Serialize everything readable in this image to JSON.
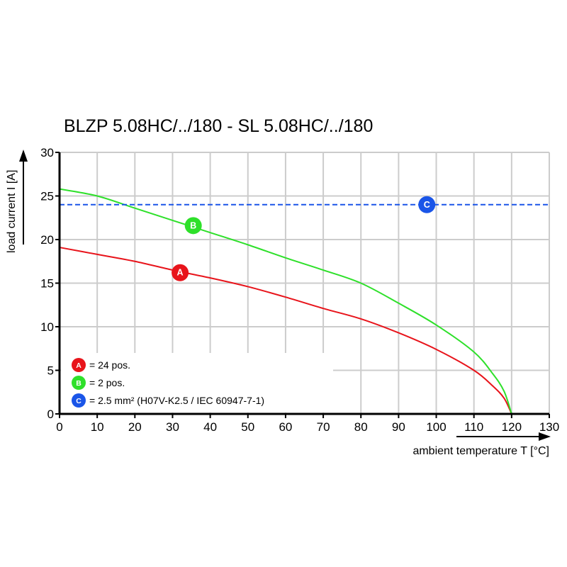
{
  "chart_data": {
    "type": "line",
    "title": "BLZP 5.08HC/../180 - SL 5.08HC/../180",
    "xlabel": "ambient temperature T [°C]",
    "ylabel": "load current I [A]",
    "xlim": [
      0,
      130
    ],
    "ylim": [
      0,
      30
    ],
    "xticks": [
      0,
      10,
      20,
      30,
      40,
      50,
      60,
      70,
      80,
      90,
      100,
      110,
      120,
      130
    ],
    "yticks": [
      0,
      5,
      10,
      15,
      20,
      25,
      30
    ],
    "grid": true,
    "legend_placement": "bottom-left",
    "series": [
      {
        "marker": "A",
        "name": "= 24 pos.",
        "color": "#e8141b",
        "style": "solid",
        "x": [
          0,
          10,
          20,
          30,
          40,
          50,
          60,
          70,
          80,
          90,
          100,
          110,
          115,
          118,
          120
        ],
        "y": [
          19.1,
          18.3,
          17.5,
          16.5,
          15.6,
          14.6,
          13.4,
          12.1,
          10.9,
          9.3,
          7.4,
          5.0,
          3.2,
          1.8,
          0
        ],
        "marker_at": [
          32,
          16.2
        ]
      },
      {
        "marker": "B",
        "name": "= 2 pos.",
        "color": "#2ee02a",
        "style": "solid",
        "x": [
          0,
          10,
          20,
          30,
          40,
          50,
          60,
          70,
          80,
          90,
          100,
          110,
          115,
          118,
          120
        ],
        "y": [
          25.8,
          25.0,
          23.6,
          22.2,
          20.8,
          19.4,
          17.9,
          16.5,
          15.0,
          12.7,
          10.2,
          7.1,
          4.6,
          2.6,
          0
        ],
        "marker_at": [
          35.5,
          21.6
        ]
      },
      {
        "marker": "C",
        "name": "= 2.5 mm² (H07V-K2.5 / IEC 60947-7-1)",
        "color": "#1a55e8",
        "style": "dashed",
        "x": [
          0,
          130
        ],
        "y": [
          24,
          24
        ],
        "marker_at": [
          97.5,
          24
        ]
      }
    ]
  }
}
